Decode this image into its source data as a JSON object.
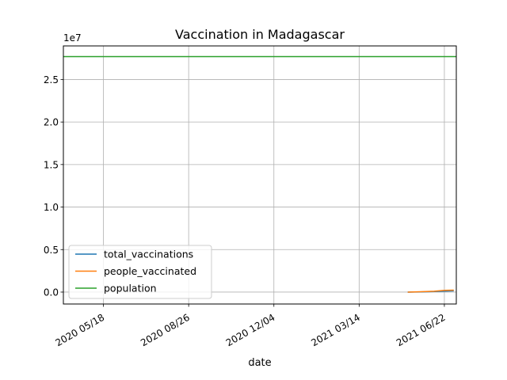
{
  "chart_data": {
    "type": "line",
    "title": "Vaccination in Madagascar",
    "xlabel": "date",
    "ylabel": "",
    "y_multiplier_label": "1e7",
    "x_tick_labels": [
      "2020 05/18",
      "2020 08/26",
      "2020 12/04",
      "2021 03/14",
      "2021 06/22"
    ],
    "x_tick_dates": [
      "2020-05-18",
      "2020-08-26",
      "2020-12-04",
      "2021-03-14",
      "2021-06-22"
    ],
    "xlim": [
      "2020-04-01",
      "2021-07-06"
    ],
    "y_tick_labels": [
      "0.0",
      "0.5",
      "1.0",
      "1.5",
      "2.0",
      "2.5"
    ],
    "y_tick_values": [
      0,
      5000000,
      10000000,
      15000000,
      20000000,
      25000000
    ],
    "ylim": [
      -1400000,
      28950000
    ],
    "grid": true,
    "legend_position": "lower-left",
    "series": [
      {
        "name": "total_vaccinations",
        "color": "#1f77b4",
        "points": [
          {
            "x": "2021-05-10",
            "y": 0
          },
          {
            "x": "2021-05-25",
            "y": 20000
          },
          {
            "x": "2021-06-10",
            "y": 60000
          },
          {
            "x": "2021-06-22",
            "y": 120000
          },
          {
            "x": "2021-07-03",
            "y": 150000
          }
        ]
      },
      {
        "name": "people_vaccinated",
        "color": "#ff7f0e",
        "points": [
          {
            "x": "2021-05-10",
            "y": 0
          },
          {
            "x": "2021-05-25",
            "y": 40000
          },
          {
            "x": "2021-06-10",
            "y": 100000
          },
          {
            "x": "2021-06-22",
            "y": 210000
          },
          {
            "x": "2021-07-03",
            "y": 230000
          }
        ]
      },
      {
        "name": "population",
        "color": "#2ca02c",
        "points": [
          {
            "x": "2020-04-01",
            "y": 27690000
          },
          {
            "x": "2021-07-06",
            "y": 27690000
          }
        ]
      }
    ]
  }
}
